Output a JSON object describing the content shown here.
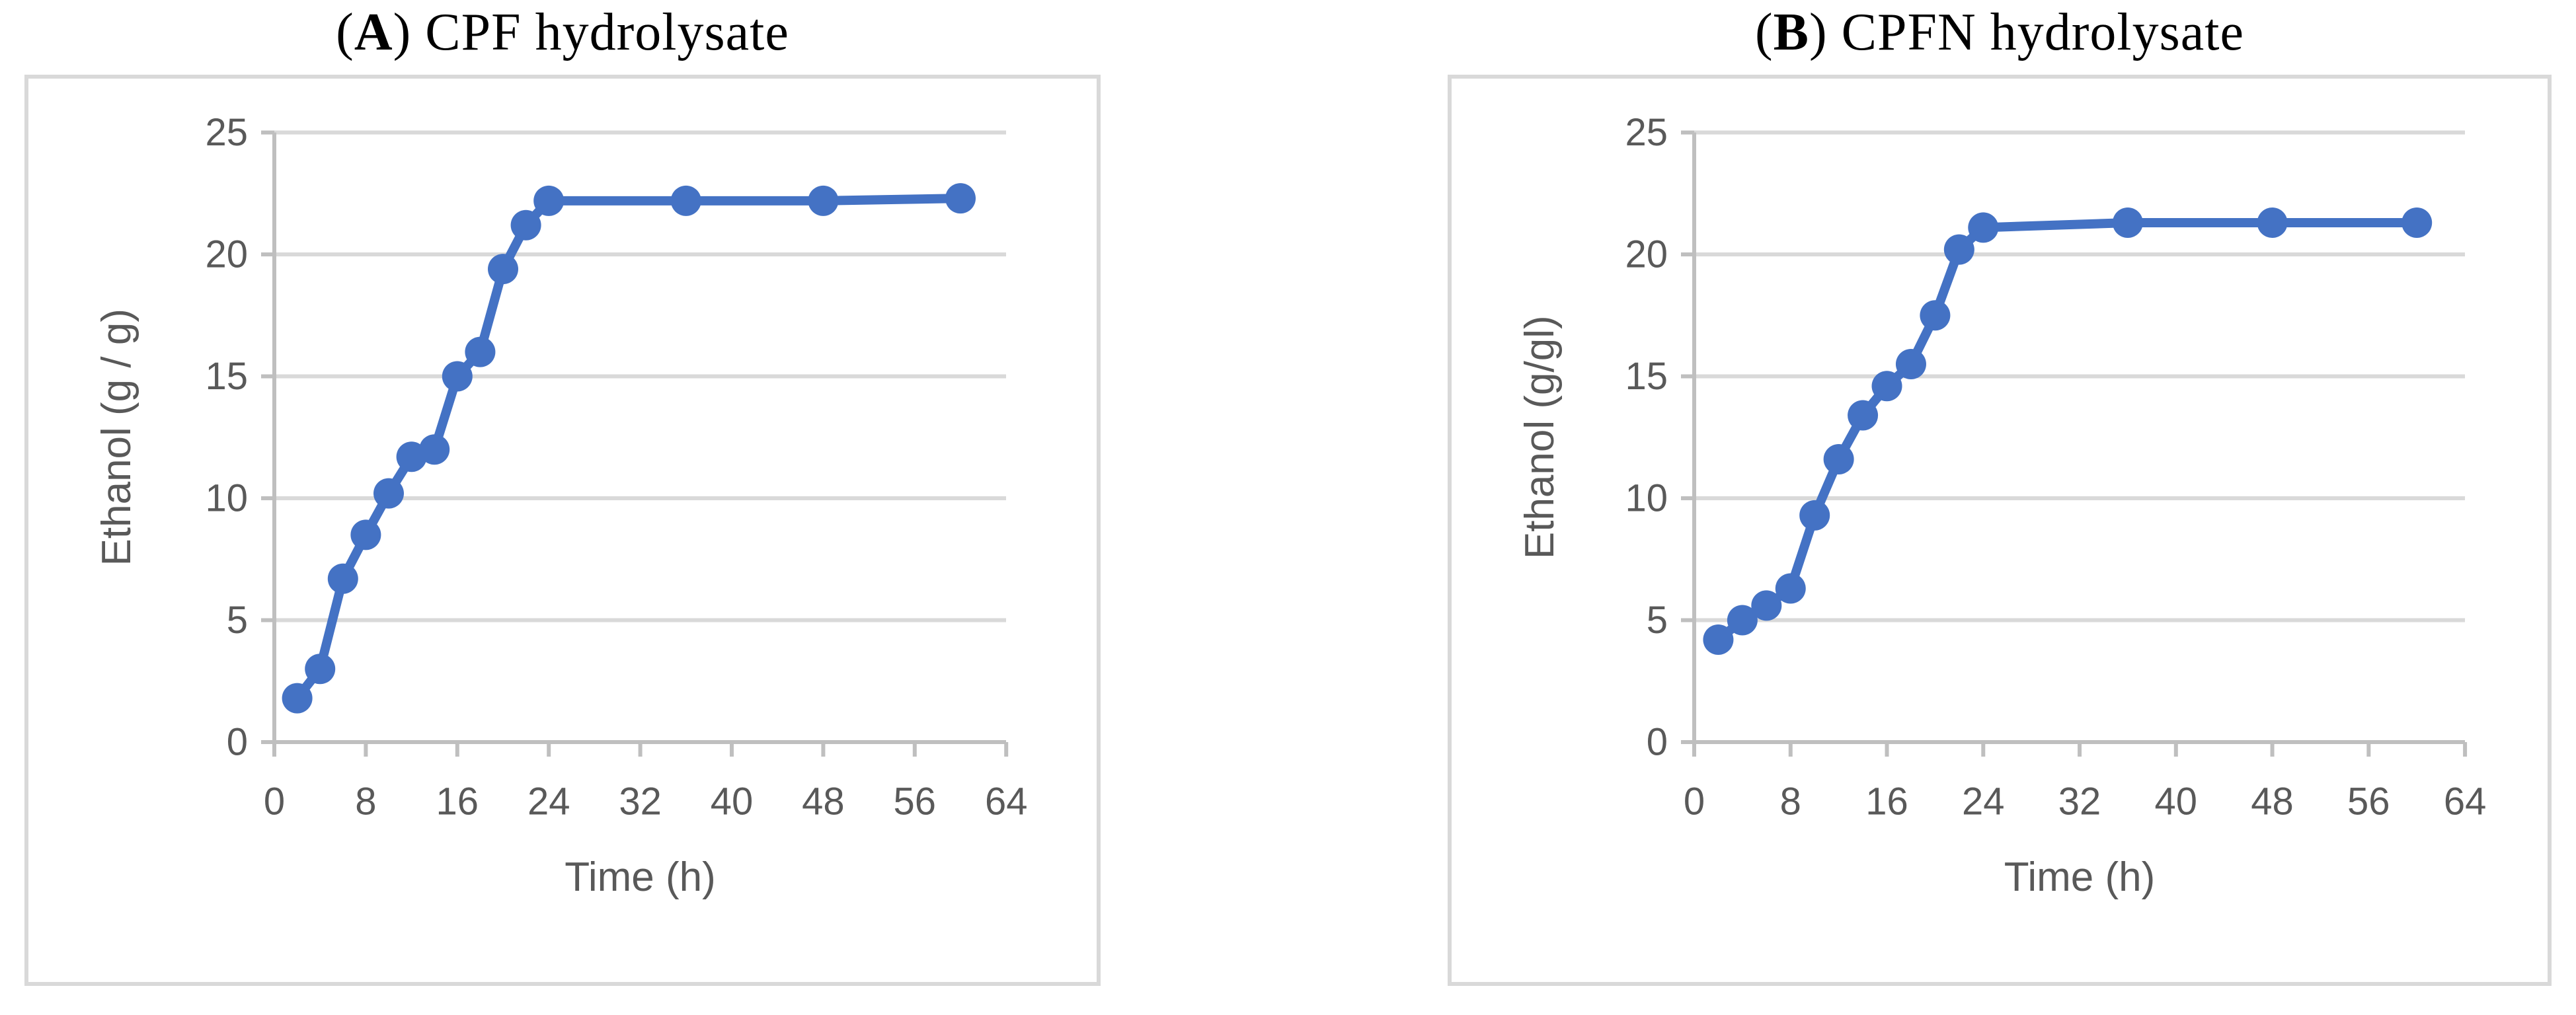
{
  "colors": {
    "series": "#4472C4",
    "grid": "#D9D9D9",
    "axis": "#BFBFBF",
    "border": "#D9D9D9",
    "tick_text": "#595959",
    "title_text": "#000000"
  },
  "chart_data": [
    {
      "type": "line",
      "id": "A",
      "title": "(A) CPF hydrolysate",
      "title_parts": {
        "open": "(",
        "letter": "A",
        "rest": ") CPF hydrolysate"
      },
      "xlabel": "Time (h)",
      "ylabel": "Ethanol (g / g)",
      "x": [
        2,
        4,
        6,
        8,
        10,
        12,
        14,
        16,
        18,
        20,
        22,
        24,
        36,
        48,
        60
      ],
      "y": [
        1.8,
        3.0,
        6.7,
        8.5,
        10.2,
        11.7,
        12.0,
        15.0,
        16.0,
        19.4,
        21.2,
        22.2,
        22.2,
        22.2,
        22.3
      ],
      "xticks": [
        0,
        8,
        16,
        24,
        32,
        40,
        48,
        56,
        64
      ],
      "yticks": [
        0,
        5,
        10,
        15,
        20,
        25
      ],
      "xlim": [
        0,
        64
      ],
      "ylim": [
        0,
        25
      ],
      "grid": true,
      "legend": "none"
    },
    {
      "type": "line",
      "id": "B",
      "title": "(B) CPFN hydrolysate",
      "title_parts": {
        "open": "(",
        "letter": "B",
        "rest": ") CPFN hydrolysate"
      },
      "xlabel": "Time (h)",
      "ylabel": "Ethanol (g/gl)",
      "x": [
        2,
        4,
        6,
        8,
        10,
        12,
        14,
        16,
        18,
        20,
        22,
        24,
        36,
        48,
        60
      ],
      "y": [
        4.2,
        5.0,
        5.6,
        6.3,
        9.3,
        11.6,
        13.4,
        14.6,
        15.5,
        17.5,
        20.2,
        21.1,
        21.3,
        21.3,
        21.3
      ],
      "xticks": [
        0,
        8,
        16,
        24,
        32,
        40,
        48,
        56,
        64
      ],
      "yticks": [
        0,
        5,
        10,
        15,
        20,
        25
      ],
      "xlim": [
        0,
        64
      ],
      "ylim": [
        0,
        25
      ],
      "grid": true,
      "legend": "none"
    }
  ]
}
